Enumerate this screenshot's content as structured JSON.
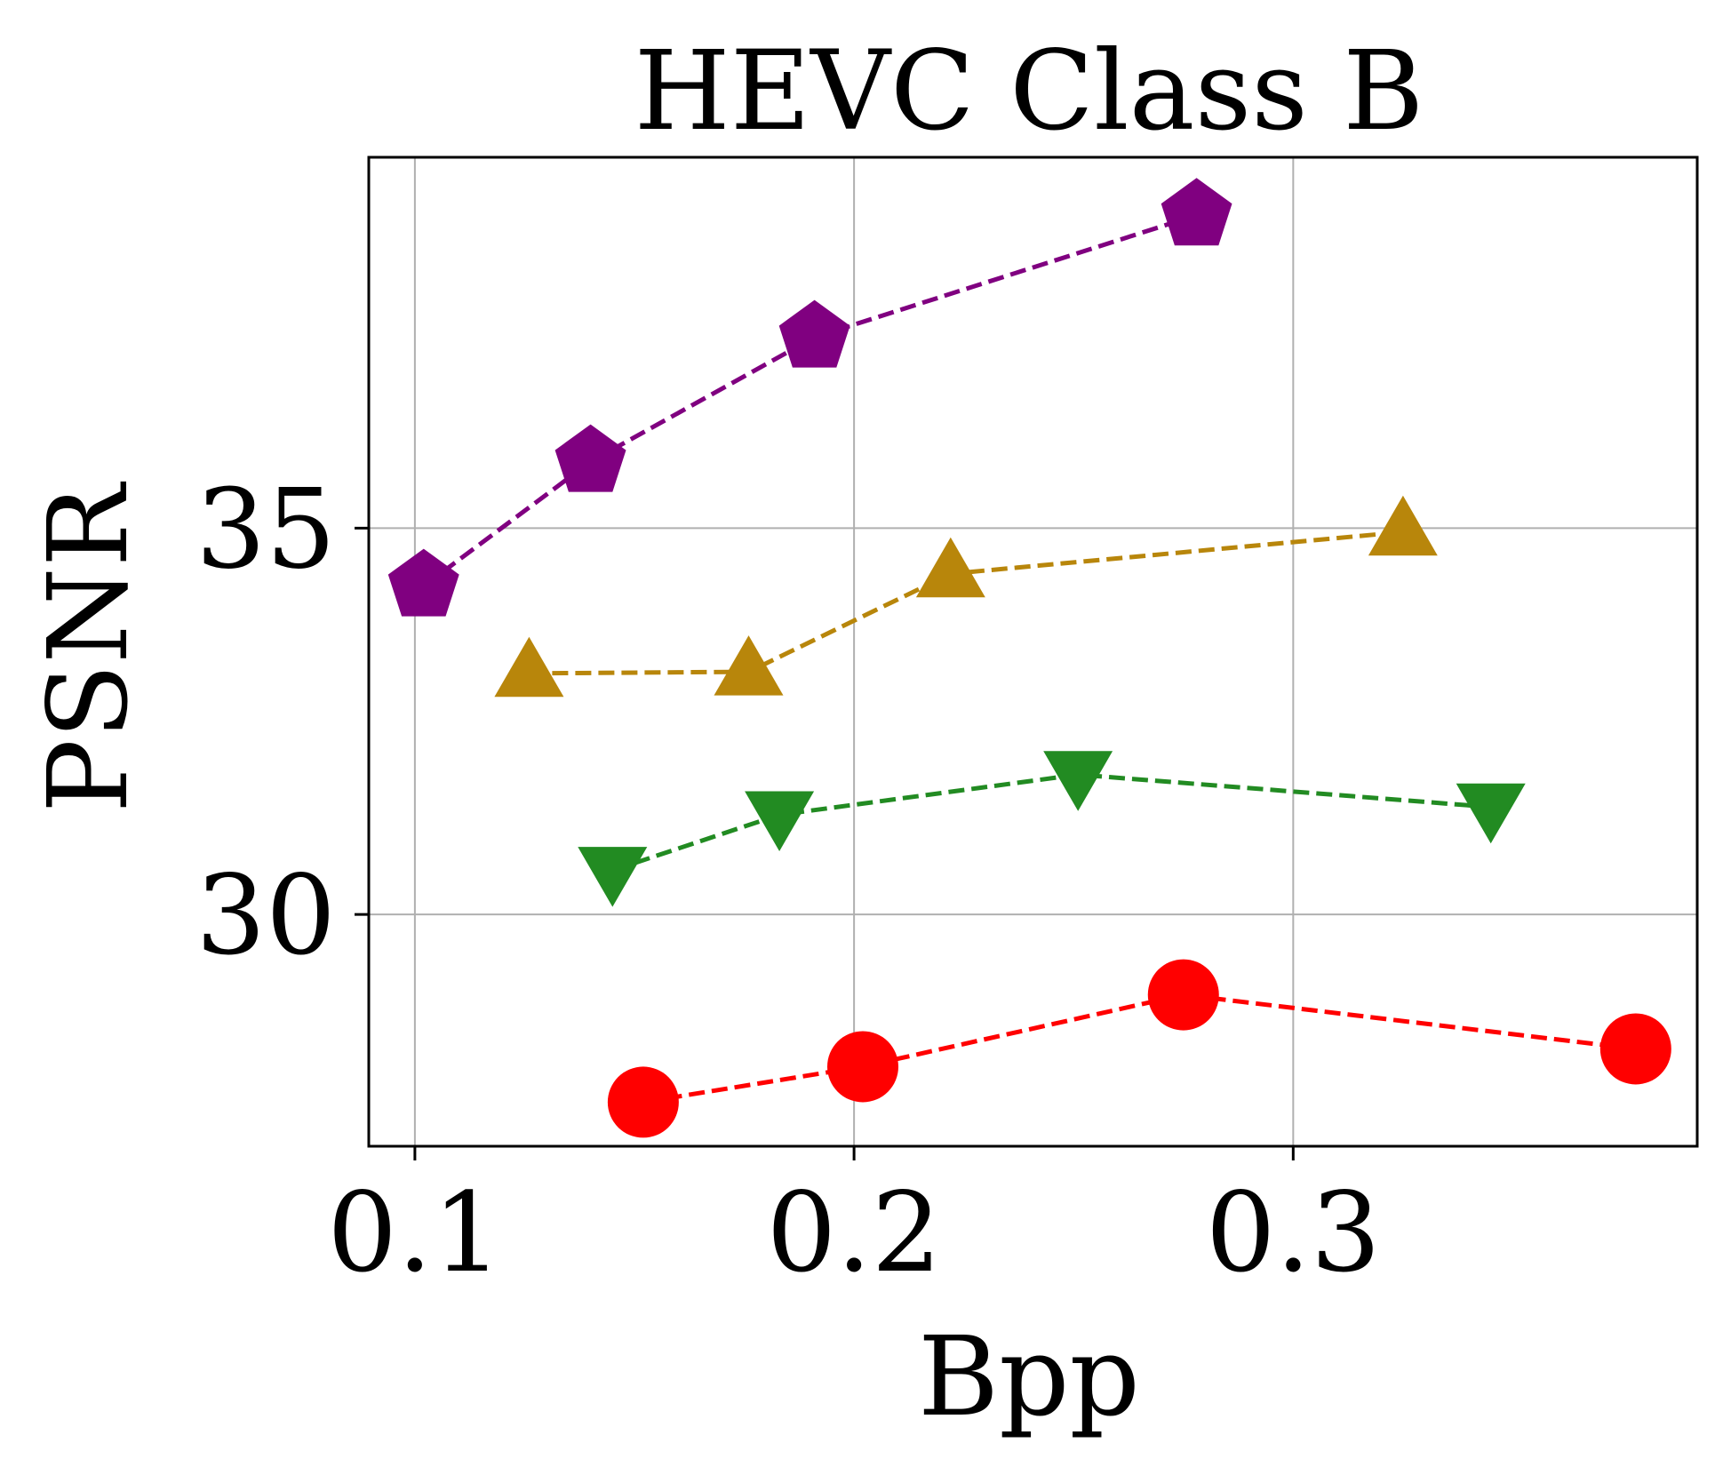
{
  "chart_data": {
    "type": "line",
    "title": "HEVC Class B",
    "xlabel": "Bpp",
    "ylabel": "PSNR",
    "xlim": [
      0.0895,
      0.392
    ],
    "ylim": [
      27.0,
      39.8
    ],
    "xticks": [
      0.1,
      0.2,
      0.3
    ],
    "xtick_labels": [
      "0.1",
      "0.2",
      "0.3"
    ],
    "yticks": [
      30,
      35
    ],
    "ytick_labels": [
      "30",
      "35"
    ],
    "grid": true,
    "series": [
      {
        "name": "purple",
        "color": "#800080",
        "marker": "pentagon",
        "x": [
          0.102,
          0.14,
          0.191,
          0.278
        ],
        "y": [
          34.25,
          35.86,
          37.47,
          39.05
        ]
      },
      {
        "name": "goldenrod",
        "color": "#b8860b",
        "marker": "triangle-up",
        "x": [
          0.126,
          0.176,
          0.222,
          0.325
        ],
        "y": [
          33.12,
          33.14,
          34.41,
          34.95
        ]
      },
      {
        "name": "green",
        "color": "#228b22",
        "marker": "triangle-down",
        "x": [
          0.145,
          0.183,
          0.251,
          0.345
        ],
        "y": [
          30.57,
          31.29,
          31.81,
          31.39
        ]
      },
      {
        "name": "red",
        "color": "#ff0000",
        "marker": "circle",
        "x": [
          0.152,
          0.202,
          0.275,
          0.378
        ],
        "y": [
          27.57,
          28.03,
          28.96,
          28.26
        ]
      }
    ]
  }
}
